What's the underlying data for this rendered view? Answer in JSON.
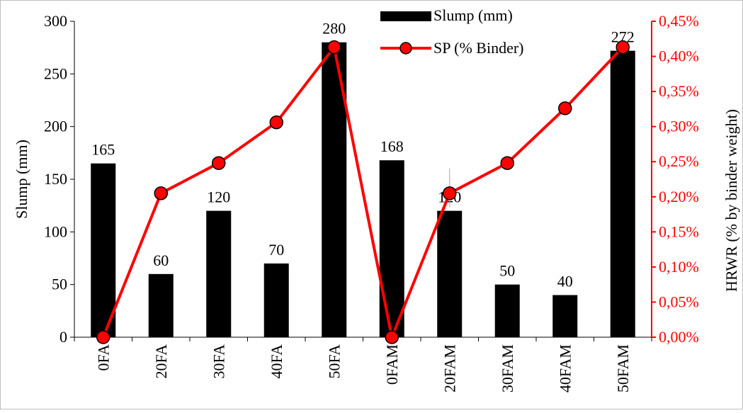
{
  "chart_data": {
    "type": "bar",
    "categories": [
      "0FA",
      "20FA",
      "30FA",
      "40FA",
      "50FA",
      "0FAM",
      "20FAM",
      "30FAM",
      "40FAM",
      "50FAM"
    ],
    "series": [
      {
        "name": "Slump (mm)",
        "type": "bar",
        "axis": "left",
        "color": "#000000",
        "values": [
          165,
          60,
          120,
          70,
          280,
          168,
          120,
          50,
          40,
          272
        ],
        "data_labels": [
          "165",
          "60",
          "120",
          "70",
          "280",
          "168",
          "120",
          "50",
          "40",
          "272"
        ]
      },
      {
        "name": "SP (% Binder)",
        "type": "line",
        "axis": "right",
        "color": "#ff0000",
        "values": [
          0.0,
          0.205,
          0.248,
          0.306,
          0.413,
          0.0,
          0.205,
          0.248,
          0.326,
          0.413
        ]
      }
    ],
    "ylabel": "Slump (mm)",
    "y2label": "HRWR (% by binder weight)",
    "ylim": [
      0,
      300
    ],
    "y2lim": [
      0,
      0.45
    ],
    "yticks": [
      "0",
      "50",
      "100",
      "150",
      "200",
      "250",
      "300"
    ],
    "y2ticks": [
      "0,00%",
      "0,05%",
      "0,10%",
      "0,15%",
      "0,20%",
      "0,25%",
      "0,30%",
      "0,35%",
      "0,40%",
      "0,45%"
    ],
    "grid": false,
    "legend": "top-center",
    "axis_color_right": "#ff0000"
  }
}
